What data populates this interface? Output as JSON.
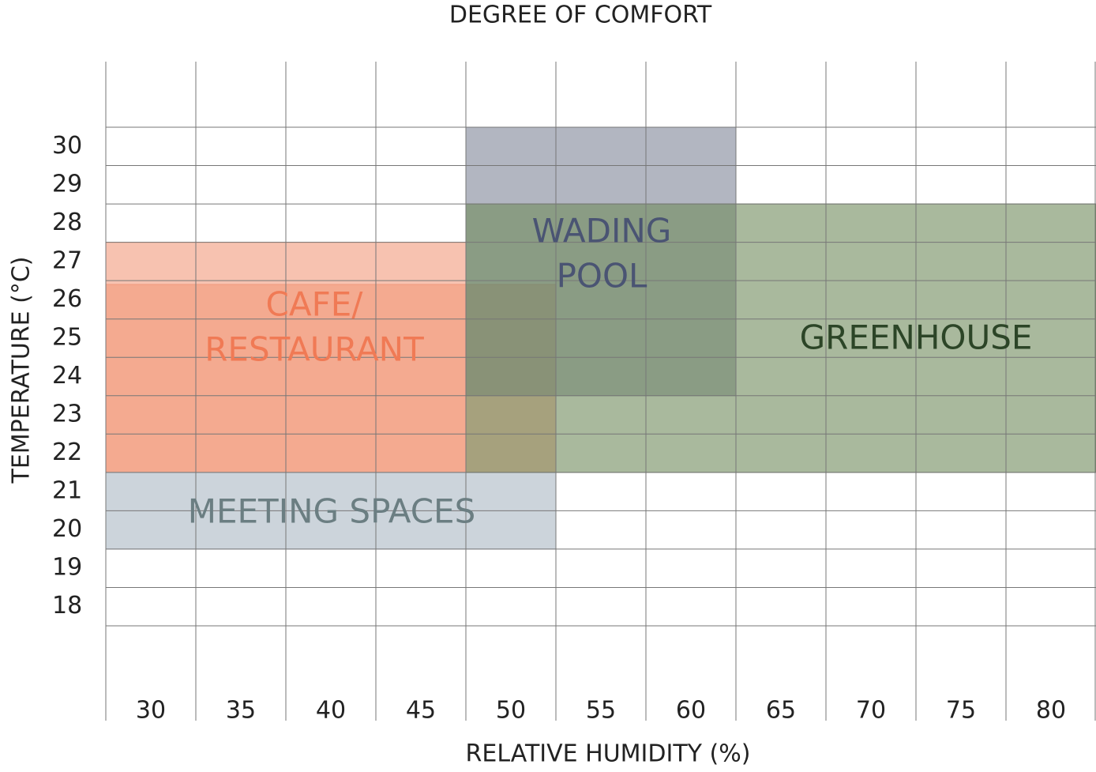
{
  "chart_data": {
    "type": "zones",
    "title": "DEGREE OF COMFORT",
    "x_label": "RELATIVE HUMIDITY (%)",
    "y_label": "TEMPERATURE (°C)",
    "xticks": [
      30,
      35,
      40,
      45,
      50,
      55,
      60,
      65,
      70,
      75,
      80
    ],
    "yticks": [
      18,
      19,
      20,
      21,
      22,
      23,
      24,
      25,
      26,
      27,
      28,
      29,
      30
    ],
    "xlim": [
      27.5,
      82.5
    ],
    "ylim": [
      17.5,
      30.5
    ],
    "grid": true,
    "zones": [
      {
        "name": [
          "CAFE/",
          "RESTAURANT"
        ],
        "color": "#f29a7c",
        "label_color": "#f07a55",
        "rects": [
          {
            "x": [
              27.5,
              47.5
            ],
            "y": [
              21.5,
              27.5
            ]
          },
          {
            "x": [
              27.5,
              52.5
            ],
            "y": [
              21.5,
              26.4
            ]
          }
        ]
      },
      {
        "name": [
          "MEETING SPACES"
        ],
        "color": "#aab8c3",
        "label_color": "#6b7e82",
        "rects": [
          {
            "x": [
              27.5,
              52.5
            ],
            "y": [
              19.5,
              21.5
            ]
          }
        ]
      },
      {
        "name": [
          "WADING",
          "POOL"
        ],
        "color": "#7f8598",
        "label_color": "#4a5473",
        "rects": [
          {
            "x": [
              47.5,
              62.5
            ],
            "y": [
              23.5,
              30.5
            ]
          }
        ]
      },
      {
        "name": [
          "GREENHOUSE"
        ],
        "color": "#6f8a5c",
        "label_color": "#2c4527",
        "rects": [
          {
            "x": [
              47.5,
              82.5
            ],
            "y": [
              21.5,
              28.5
            ]
          }
        ]
      }
    ]
  }
}
